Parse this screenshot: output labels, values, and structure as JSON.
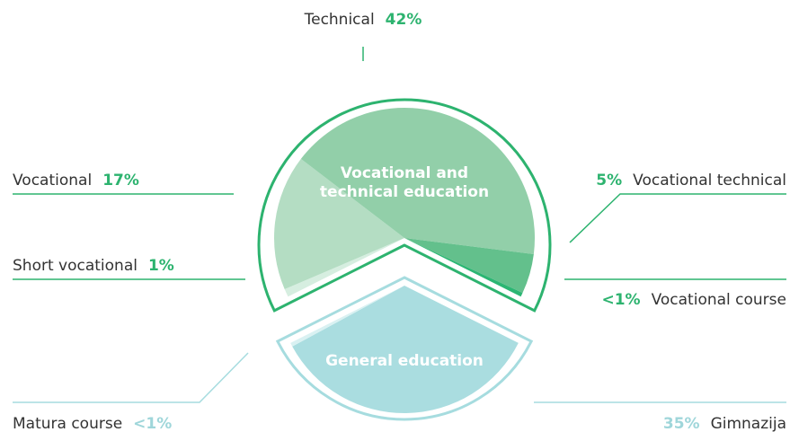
{
  "chart_data": {
    "type": "pie",
    "groups": [
      {
        "name": "Vocational and technical education",
        "outline": "#2db36f",
        "pct_color": "#2db36f",
        "categories": [
          "Short vocational",
          "Vocational",
          "Technical",
          "Vocational technical",
          "Vocational course"
        ],
        "values": [
          1,
          17,
          42,
          5,
          0.5
        ],
        "value_labels": [
          "1%",
          "17%",
          "42%",
          "5%",
          "<1%"
        ],
        "colors": [
          "#d6eee0",
          "#b4ddc3",
          "#92cfa9",
          "#63c08c",
          "#2bb673"
        ]
      },
      {
        "name": "General education",
        "outline": "#a6dcdf",
        "pct_color": "#9fd6da",
        "categories": [
          "Gimnazija",
          "Matura course"
        ],
        "values": [
          35,
          0.5
        ],
        "value_labels": [
          "35%",
          "<1%"
        ],
        "colors": [
          "#aadde0",
          "#d9f1f2"
        ]
      }
    ]
  }
}
